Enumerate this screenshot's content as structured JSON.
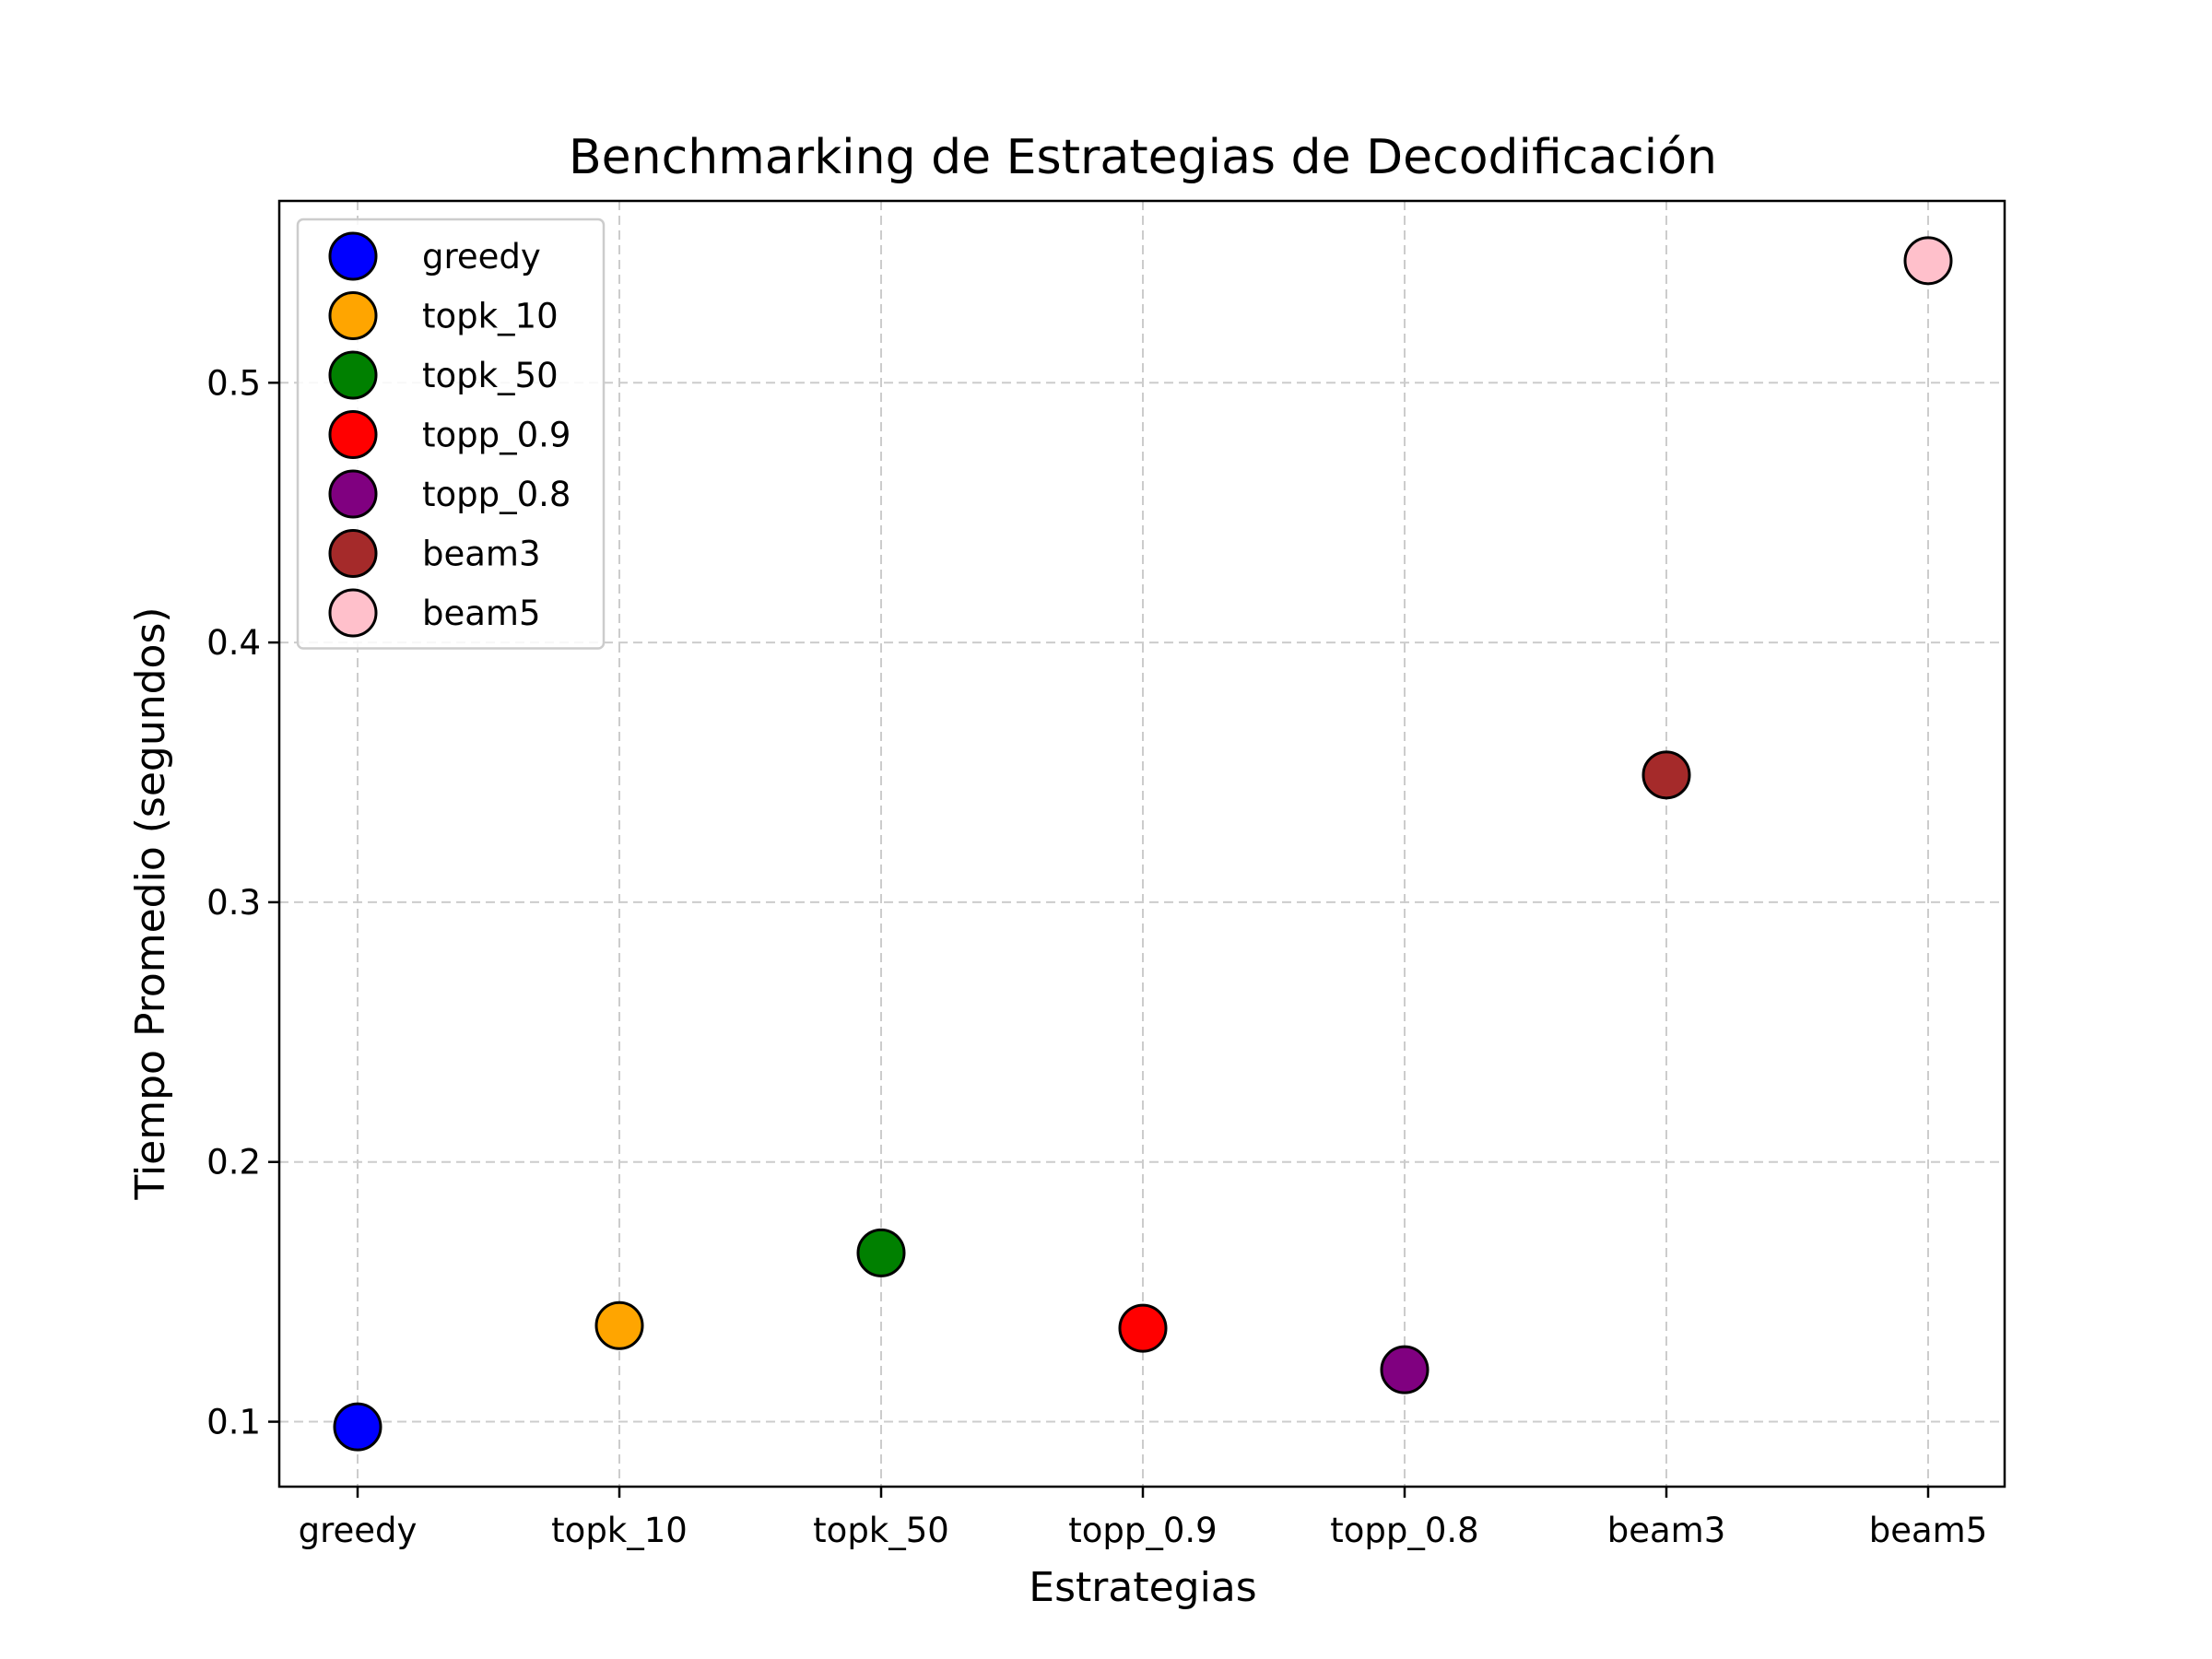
{
  "chart_data": {
    "type": "scatter",
    "title": "Benchmarking de Estrategias de Decodificación",
    "xlabel": "Estrategias",
    "ylabel": "Tiempo Promedio (segundos)",
    "categories": [
      "greedy",
      "topk_10",
      "topk_50",
      "topp_0.9",
      "topp_0.8",
      "beam3",
      "beam5"
    ],
    "series": [
      {
        "name": "greedy",
        "values": [
          0.098
        ],
        "color": "#0000ff"
      },
      {
        "name": "topk_10",
        "values": [
          0.137
        ],
        "color": "#ffa500"
      },
      {
        "name": "topk_50",
        "values": [
          0.165
        ],
        "color": "#008000"
      },
      {
        "name": "topp_0.9",
        "values": [
          0.136
        ],
        "color": "#ff0000"
      },
      {
        "name": "topp_0.8",
        "values": [
          0.12
        ],
        "color": "#800080"
      },
      {
        "name": "beam3",
        "values": [
          0.349
        ],
        "color": "#a52a2a"
      },
      {
        "name": "beam5",
        "values": [
          0.547
        ],
        "color": "#ffc0cb"
      }
    ],
    "yticks": [
      "0.1",
      "0.2",
      "0.3",
      "0.4",
      "0.5"
    ],
    "ylim": [
      0.075,
      0.57
    ],
    "grid": true,
    "legend_position": "top-left"
  }
}
